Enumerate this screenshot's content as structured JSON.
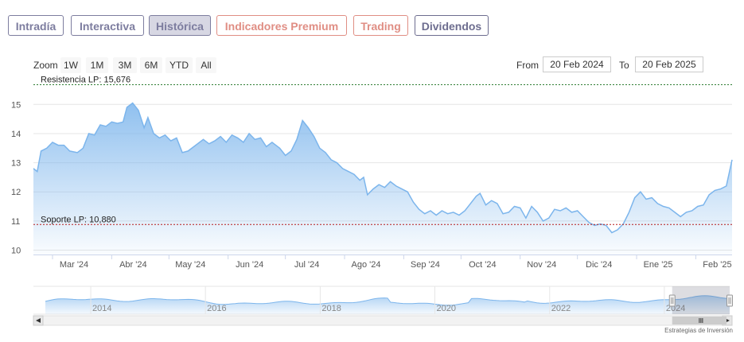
{
  "tabs": [
    {
      "label": "Intradía",
      "color": "#7d7d9f"
    },
    {
      "label": "Interactiva",
      "color": "#7d7d9f"
    },
    {
      "label": "Histórica",
      "color": "#7d7d9f",
      "active": true
    },
    {
      "label": "Indicadores Premium",
      "color": "#e08e84"
    },
    {
      "label": "Trading",
      "color": "#e08e84"
    },
    {
      "label": "Dividendos",
      "color": "#6d6d8f"
    }
  ],
  "range_selector": {
    "zoom_label": "Zoom",
    "buttons": [
      "1W",
      "1M",
      "3M",
      "6M",
      "YTD",
      "All"
    ],
    "from_label": "From",
    "from_value": "20 Feb 2024",
    "to_label": "To",
    "to_value": "20 Feb 2025"
  },
  "credit": "Estrategias de Inversión",
  "chart_data": {
    "type": "area",
    "y_ticks": [
      "10",
      "11",
      "12",
      "13",
      "14",
      "15"
    ],
    "ylim": [
      9.85,
      15.8
    ],
    "x_ticks": [
      {
        "label": "Mar '24",
        "x": "2024-03-01"
      },
      {
        "label": "Abr '24",
        "x": "2024-04-01"
      },
      {
        "label": "May '24",
        "x": "2024-05-01"
      },
      {
        "label": "Jun '24",
        "x": "2024-06-01"
      },
      {
        "label": "Jul '24",
        "x": "2024-07-01"
      },
      {
        "label": "Ago '24",
        "x": "2024-08-01"
      },
      {
        "label": "Sep '24",
        "x": "2024-09-01"
      },
      {
        "label": "Oct '24",
        "x": "2024-10-01"
      },
      {
        "label": "Nov '24",
        "x": "2024-11-01"
      },
      {
        "label": "Dic '24",
        "x": "2024-12-01"
      },
      {
        "label": "Ene '25",
        "x": "2025-01-01"
      },
      {
        "label": "Feb '25",
        "x": "2025-02-01"
      }
    ],
    "xlim": [
      "2024-02-20",
      "2025-02-20"
    ],
    "series": [
      {
        "color": "#7cb5ec",
        "points": [
          [
            "2024-02-20",
            12.8
          ],
          [
            "2024-02-22",
            12.7
          ],
          [
            "2024-02-24",
            13.4
          ],
          [
            "2024-02-27",
            13.5
          ],
          [
            "2024-03-01",
            13.7
          ],
          [
            "2024-03-04",
            13.6
          ],
          [
            "2024-03-07",
            13.6
          ],
          [
            "2024-03-10",
            13.4
          ],
          [
            "2024-03-14",
            13.35
          ],
          [
            "2024-03-17",
            13.5
          ],
          [
            "2024-03-20",
            14.0
          ],
          [
            "2024-03-23",
            13.95
          ],
          [
            "2024-03-26",
            14.3
          ],
          [
            "2024-03-29",
            14.25
          ],
          [
            "2024-04-01",
            14.4
          ],
          [
            "2024-04-04",
            14.35
          ],
          [
            "2024-04-07",
            14.4
          ],
          [
            "2024-04-09",
            14.9
          ],
          [
            "2024-04-12",
            15.05
          ],
          [
            "2024-04-15",
            14.8
          ],
          [
            "2024-04-18",
            14.2
          ],
          [
            "2024-04-20",
            14.55
          ],
          [
            "2024-04-23",
            14.0
          ],
          [
            "2024-04-26",
            13.85
          ],
          [
            "2024-04-29",
            13.95
          ],
          [
            "2024-05-02",
            13.75
          ],
          [
            "2024-05-05",
            13.85
          ],
          [
            "2024-05-08",
            13.35
          ],
          [
            "2024-05-11",
            13.4
          ],
          [
            "2024-05-15",
            13.6
          ],
          [
            "2024-05-19",
            13.8
          ],
          [
            "2024-05-22",
            13.65
          ],
          [
            "2024-05-25",
            13.75
          ],
          [
            "2024-05-28",
            13.9
          ],
          [
            "2024-05-31",
            13.7
          ],
          [
            "2024-06-03",
            13.95
          ],
          [
            "2024-06-06",
            13.85
          ],
          [
            "2024-06-09",
            13.7
          ],
          [
            "2024-06-12",
            14.0
          ],
          [
            "2024-06-15",
            13.8
          ],
          [
            "2024-06-18",
            13.85
          ],
          [
            "2024-06-21",
            13.55
          ],
          [
            "2024-06-24",
            13.7
          ],
          [
            "2024-06-28",
            13.5
          ],
          [
            "2024-07-01",
            13.25
          ],
          [
            "2024-07-04",
            13.4
          ],
          [
            "2024-07-07",
            13.8
          ],
          [
            "2024-07-10",
            14.45
          ],
          [
            "2024-07-13",
            14.2
          ],
          [
            "2024-07-16",
            13.9
          ],
          [
            "2024-07-19",
            13.5
          ],
          [
            "2024-07-22",
            13.35
          ],
          [
            "2024-07-25",
            13.1
          ],
          [
            "2024-07-28",
            13.0
          ],
          [
            "2024-07-31",
            12.8
          ],
          [
            "2024-08-03",
            12.7
          ],
          [
            "2024-08-06",
            12.6
          ],
          [
            "2024-08-09",
            12.4
          ],
          [
            "2024-08-11",
            12.5
          ],
          [
            "2024-08-13",
            11.9
          ],
          [
            "2024-08-16",
            12.1
          ],
          [
            "2024-08-19",
            12.25
          ],
          [
            "2024-08-22",
            12.15
          ],
          [
            "2024-08-25",
            12.35
          ],
          [
            "2024-08-28",
            12.2
          ],
          [
            "2024-08-31",
            12.1
          ],
          [
            "2024-09-03",
            12.0
          ],
          [
            "2024-09-06",
            11.65
          ],
          [
            "2024-09-09",
            11.4
          ],
          [
            "2024-09-12",
            11.25
          ],
          [
            "2024-09-15",
            11.35
          ],
          [
            "2024-09-18",
            11.2
          ],
          [
            "2024-09-21",
            11.35
          ],
          [
            "2024-09-24",
            11.25
          ],
          [
            "2024-09-27",
            11.3
          ],
          [
            "2024-09-30",
            11.2
          ],
          [
            "2024-10-03",
            11.35
          ],
          [
            "2024-10-06",
            11.6
          ],
          [
            "2024-10-09",
            11.85
          ],
          [
            "2024-10-11",
            11.95
          ],
          [
            "2024-10-14",
            11.55
          ],
          [
            "2024-10-17",
            11.7
          ],
          [
            "2024-10-20",
            11.6
          ],
          [
            "2024-10-23",
            11.25
          ],
          [
            "2024-10-26",
            11.3
          ],
          [
            "2024-10-29",
            11.5
          ],
          [
            "2024-11-01",
            11.45
          ],
          [
            "2024-11-04",
            11.1
          ],
          [
            "2024-11-07",
            11.5
          ],
          [
            "2024-11-10",
            11.3
          ],
          [
            "2024-11-13",
            11.0
          ],
          [
            "2024-11-16",
            11.1
          ],
          [
            "2024-11-19",
            11.4
          ],
          [
            "2024-11-22",
            11.35
          ],
          [
            "2024-11-25",
            11.45
          ],
          [
            "2024-11-28",
            11.3
          ],
          [
            "2024-12-01",
            11.35
          ],
          [
            "2024-12-04",
            11.15
          ],
          [
            "2024-12-07",
            10.95
          ],
          [
            "2024-12-10",
            10.85
          ],
          [
            "2024-12-13",
            10.9
          ],
          [
            "2024-12-16",
            10.85
          ],
          [
            "2024-12-19",
            10.6
          ],
          [
            "2024-12-22",
            10.7
          ],
          [
            "2024-12-25",
            10.9
          ],
          [
            "2024-12-28",
            11.3
          ],
          [
            "2024-12-31",
            11.8
          ],
          [
            "2025-01-03",
            12.0
          ],
          [
            "2025-01-06",
            11.75
          ],
          [
            "2025-01-09",
            11.8
          ],
          [
            "2025-01-12",
            11.6
          ],
          [
            "2025-01-15",
            11.5
          ],
          [
            "2025-01-18",
            11.45
          ],
          [
            "2025-01-21",
            11.3
          ],
          [
            "2025-01-24",
            11.15
          ],
          [
            "2025-01-27",
            11.3
          ],
          [
            "2025-01-30",
            11.35
          ],
          [
            "2025-02-02",
            11.5
          ],
          [
            "2025-02-05",
            11.55
          ],
          [
            "2025-02-08",
            11.9
          ],
          [
            "2025-02-11",
            12.05
          ],
          [
            "2025-02-14",
            12.1
          ],
          [
            "2025-02-17",
            12.2
          ],
          [
            "2025-02-20",
            13.1
          ]
        ]
      }
    ],
    "reference_lines": [
      {
        "label": "Resistencia LP: 15,676",
        "value": 15.676,
        "color": "#2e7d32"
      },
      {
        "label": "Soporte LP: 10,880",
        "value": 10.88,
        "color": "#b71c1c"
      }
    ],
    "grid": true,
    "navigator": {
      "labels": [
        "2014",
        "2016",
        "2018",
        "2020",
        "2022",
        "2024"
      ],
      "xlim": [
        "2013-01-01",
        "2025-02-20"
      ],
      "selected_range": [
        "2024-02-20",
        "2025-02-20"
      ]
    }
  }
}
